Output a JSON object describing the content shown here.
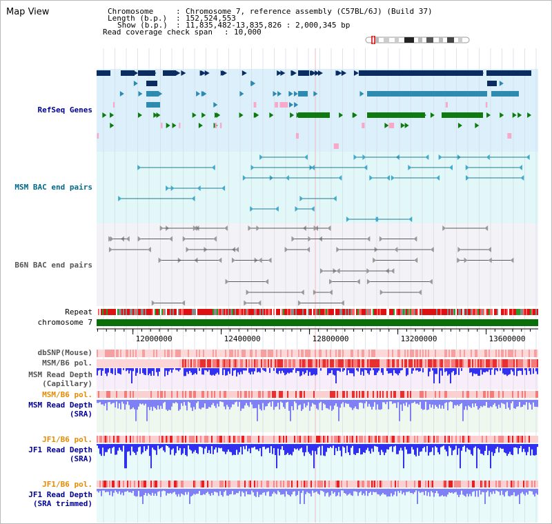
{
  "title": "Map View",
  "info": {
    "chromosome_label": "Chromosome",
    "chromosome_value": "Chromosome 7, reference assembly (C57BL/6J) (Build 37)",
    "length_label": "Length (b.p.)",
    "length_value": "152,524,553",
    "show_label": "Show (b.p.)",
    "show_value": "11,835,482-13,835,826 : 2,000,345 bp",
    "coverage_label": "Read coverage check span",
    "coverage_value": "10,000"
  },
  "tracks": {
    "refseq": "RefSeq Genes",
    "msm_bac": "MSM BAC end pairs",
    "b6n_bac": "B6N BAC end pairs",
    "repeat": "Repeat",
    "chromosome": "chromosome 7",
    "dbsnp": "dbSNP(Mouse)",
    "msm_b6_pol": "MSM/B6 pol.",
    "msm_depth_cap_1": "MSM Read Depth",
    "msm_depth_cap_2": "(Capillary)",
    "msm_b6_pol2": "MSM/B6 pol.",
    "msm_depth_sra_1": "MSM Read Depth",
    "msm_depth_sra_2": "(SRA)",
    "jf1_b6_pol": "JF1/B6 pol.",
    "jf1_depth_sra_1": "JF1 Read Depth",
    "jf1_depth_sra_2": "(SRA)",
    "jf1_b6_pol2": "JF1/B6 pol.",
    "jf1_depth_trim_1": "JF1 Read Depth",
    "jf1_depth_trim_2": "(SRA trimmed)"
  },
  "axis": {
    "ticks": [
      {
        "pos": 12000000,
        "label": "12000000"
      },
      {
        "pos": 12400000,
        "label": "12400000"
      },
      {
        "pos": 12800000,
        "label": "12800000"
      },
      {
        "pos": 13200000,
        "label": "13200000"
      },
      {
        "pos": 13600000,
        "label": "13600000"
      }
    ],
    "start": 11835482,
    "end": 13835826
  },
  "colors": {
    "refseq_bg": "#dbf0fa",
    "msm_bg": "#e2f7f7",
    "b6n_bg": "#f3f3f7",
    "navy": "#0b2c60",
    "teal": "#2f8ab0",
    "green": "#0f7a0f",
    "pink": "#f8a8c8",
    "bac_line": "#1e7b8f",
    "b6n_line": "#5a5a5a",
    "chrom_green": "#0a6e0a",
    "label_blue": "#000099",
    "label_teal": "#00688b",
    "label_orange": "#e88a00",
    "depth_blue": "#3030ee",
    "depth_light": "#8080f5"
  }
}
